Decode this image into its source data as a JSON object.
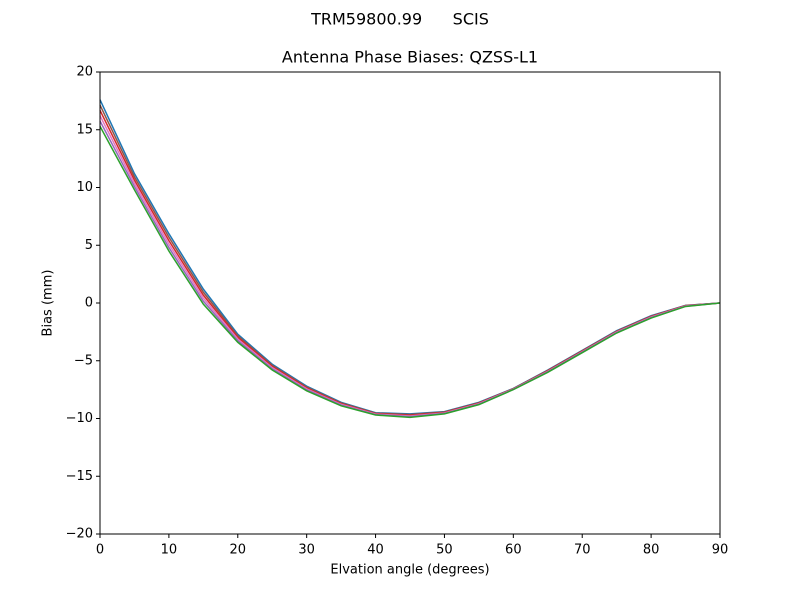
{
  "chart_data": {
    "type": "line",
    "title": "TRM59800.99      SCIS",
    "subtitle": "Antenna Phase Biases: QZSS-L1",
    "x_label": "Elvation angle (degrees)",
    "y_label": "Bias (mm)",
    "x": [
      0,
      5,
      10,
      15,
      20,
      25,
      30,
      35,
      40,
      45,
      50,
      55,
      60,
      65,
      70,
      75,
      80,
      85,
      90
    ],
    "xlim": [
      0,
      90
    ],
    "xticks": [
      0,
      10,
      20,
      30,
      40,
      50,
      60,
      70,
      80,
      90
    ],
    "ylim": [
      -20,
      20
    ],
    "yticks": [
      {
        "value": -20,
        "label": "−20"
      },
      {
        "value": -15,
        "label": "−15"
      },
      {
        "value": -10,
        "label": "−10"
      },
      {
        "value": -5,
        "label": "−5"
      },
      0,
      5,
      10,
      15,
      20
    ],
    "grid": false,
    "series": [
      {
        "color": "#1f77b4",
        "values": [
          17.6,
          11.2,
          6.0,
          1.2,
          -2.7,
          -5.3,
          -7.2,
          -8.6,
          -9.5,
          -9.6,
          -9.4,
          -8.6,
          -7.4,
          -5.8,
          -4.1,
          -2.4,
          -1.1,
          -0.2,
          0
        ]
      },
      {
        "color": "#8c564b",
        "values": [
          17.14,
          10.92,
          5.7,
          0.94,
          -2.84,
          -5.4,
          -7.28,
          -8.66,
          -9.54,
          -9.66,
          -9.44,
          -8.64,
          -7.42,
          -5.84,
          -4.14,
          -2.44,
          -1.14,
          -0.22,
          0
        ]
      },
      {
        "color": "#d62728",
        "values": [
          16.68,
          10.64,
          5.4,
          0.68,
          -2.98,
          -5.5,
          -7.36,
          -8.72,
          -9.58,
          -9.72,
          -9.48,
          -8.68,
          -7.44,
          -5.88,
          -4.18,
          -2.48,
          -1.18,
          -0.24,
          0
        ]
      },
      {
        "color": "#e377c2",
        "values": [
          16.22,
          10.36,
          5.1,
          0.42,
          -3.12,
          -5.6,
          -7.44,
          -8.78,
          -9.62,
          -9.78,
          -9.52,
          -8.72,
          -7.46,
          -5.92,
          -4.22,
          -2.52,
          -1.22,
          -0.26,
          0
        ]
      },
      {
        "color": "#9467bd",
        "values": [
          15.76,
          10.08,
          4.8,
          0.16,
          -3.26,
          -5.7,
          -7.52,
          -8.84,
          -9.66,
          -9.84,
          -9.56,
          -8.76,
          -7.48,
          -5.96,
          -4.26,
          -2.56,
          -1.26,
          -0.28,
          0
        ]
      },
      {
        "color": "#2ca02c",
        "values": [
          15.3,
          9.8,
          4.5,
          -0.1,
          -3.4,
          -5.8,
          -7.6,
          -8.9,
          -9.7,
          -9.9,
          -9.6,
          -8.8,
          -7.5,
          -6.0,
          -4.3,
          -2.6,
          -1.3,
          -0.3,
          0
        ]
      }
    ]
  }
}
